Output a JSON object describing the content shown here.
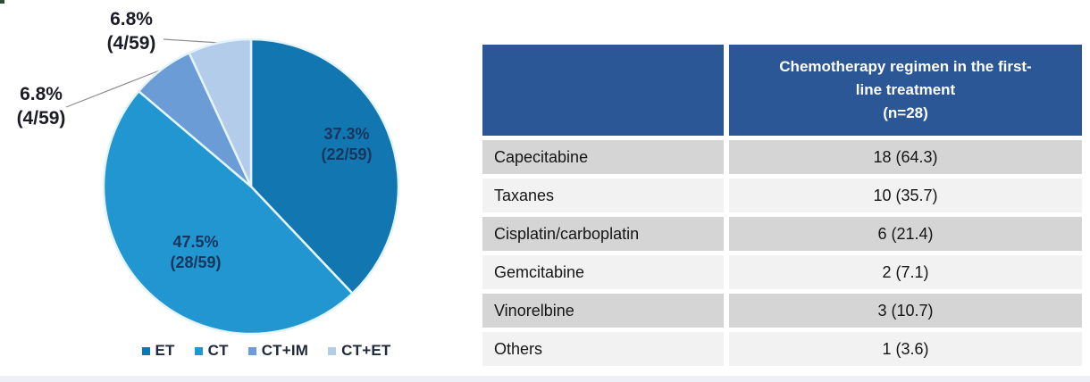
{
  "chart_data": {
    "type": "pie",
    "title": "",
    "start_angle_deg": 0,
    "direction": "clockwise",
    "legend_position": "bottom",
    "denominator": 59,
    "slices": [
      {
        "label": "ET",
        "value": 22,
        "display_pct": "37.3%",
        "display_frac": "(22/59)",
        "color": "#1276b0",
        "label_placement": "inside"
      },
      {
        "label": "CT",
        "value": 28,
        "display_pct": "47.5%",
        "display_frac": "(28/59)",
        "color": "#2196d0",
        "label_placement": "inside"
      },
      {
        "label": "CT+IM",
        "value": 4,
        "display_pct": "6.8%",
        "display_frac": "(4/59)",
        "color": "#6c9cd6",
        "label_placement": "outside"
      },
      {
        "label": "CT+ET",
        "value": 4,
        "display_pct": "6.8%",
        "display_frac": "(4/59)",
        "color": "#b3ccea",
        "label_placement": "outside"
      }
    ],
    "legend": [
      "ET",
      "CT",
      "CT+IM",
      "CT+ET"
    ]
  },
  "table": {
    "header": {
      "col1": "",
      "col2_lines": [
        "Chemotherapy regimen in the first-",
        "line treatment",
        "(n=28)"
      ]
    },
    "rows": [
      {
        "regimen": "Capecitabine",
        "value": "18 (64.3)"
      },
      {
        "regimen": "Taxanes",
        "value": "10 (35.7)"
      },
      {
        "regimen": "Cisplatin/carboplatin",
        "value": "6 (21.4)"
      },
      {
        "regimen": "Gemcitabine",
        "value": "2 (7.1)"
      },
      {
        "regimen": "Vinorelbine",
        "value": "3 (10.7)"
      },
      {
        "regimen": "Others",
        "value": "1 (3.6)"
      }
    ]
  },
  "colors": {
    "table_header_bg": "#2b5797",
    "table_row_dark": "#d5d5d6",
    "table_row_light": "#f2f2f3",
    "slice_separator": "#e3f4fc",
    "leader_line": "#8f8f8f",
    "inside_label_text": "#17365d"
  }
}
